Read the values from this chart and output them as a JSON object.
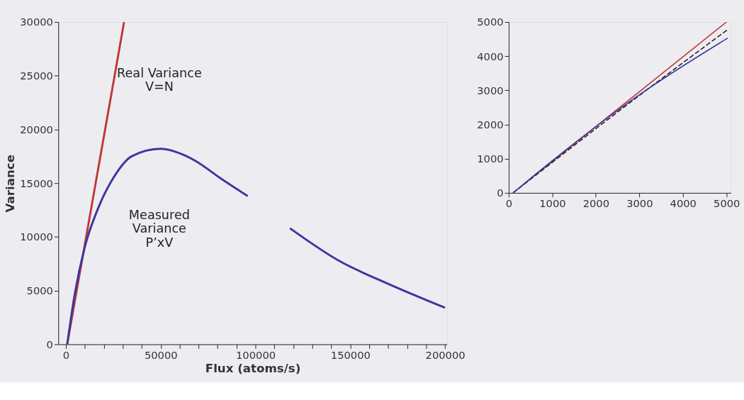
{
  "chart_data": [
    {
      "type": "line",
      "xlabel": "Flux (atoms/s)",
      "ylabel": "Variance",
      "xlim": [
        -4000,
        201000
      ],
      "ylim": [
        0,
        30000
      ],
      "xticks": [
        0,
        {
          "value": 10000,
          "label": null
        },
        {
          "value": 20000,
          "label": null
        },
        {
          "value": 30000,
          "label": null
        },
        {
          "value": 40000,
          "label": null
        },
        50000,
        {
          "value": 60000,
          "label": null
        },
        {
          "value": 70000,
          "label": null
        },
        {
          "value": 80000,
          "label": null
        },
        {
          "value": 90000,
          "label": null
        },
        100000,
        {
          "value": 110000,
          "label": null
        },
        {
          "value": 120000,
          "label": null
        },
        {
          "value": 130000,
          "label": null
        },
        {
          "value": 140000,
          "label": null
        },
        150000,
        {
          "value": 160000,
          "label": null
        },
        {
          "value": 170000,
          "label": null
        },
        {
          "value": 180000,
          "label": null
        },
        {
          "value": 190000,
          "label": null
        },
        200000
      ],
      "yticks": [
        0,
        5000,
        10000,
        15000,
        20000,
        25000,
        30000
      ],
      "series": [
        {
          "color": "#c0393b",
          "x": [
            700,
            30700
          ],
          "values": [
            0,
            30000
          ]
        },
        {
          "color": "#3d36a0",
          "x": [
            700,
            4700,
            9900,
            17100,
            25800,
            34700,
            50000,
            61200,
            68100,
            82000,
            95900,
            107000,
            118200,
            144800,
            167800,
            200000
          ],
          "values": [
            0,
            4700,
            9000,
            12700,
            15700,
            17500,
            18200,
            17700,
            17100,
            15400,
            13800,
            null,
            10800,
            7700,
            5800,
            3400
          ]
        }
      ],
      "annotations": [
        "Real Variance\nV=N",
        "Measured\nVariance\nP’xV"
      ]
    },
    {
      "type": "line",
      "xlim": [
        0,
        5100
      ],
      "ylim": [
        0,
        5000
      ],
      "xticks": [
        0,
        1000,
        2000,
        3000,
        4000,
        5000
      ],
      "yticks": [
        0,
        1000,
        2000,
        3000,
        4000,
        5000
      ],
      "series": [
        {
          "color": "#c0393b",
          "x": [
            100,
            5000
          ],
          "values": [
            0,
            5000
          ]
        },
        {
          "color": "#222222",
          "line_style": "dashed",
          "x": [
            100,
            3000,
            5030
          ],
          "values": [
            0,
            2850,
            4780
          ]
        },
        {
          "color": "#3d36a0",
          "x": [
            100,
            1000,
            3000,
            5030
          ],
          "values": [
            0,
            940,
            2870,
            4530
          ]
        }
      ]
    }
  ]
}
